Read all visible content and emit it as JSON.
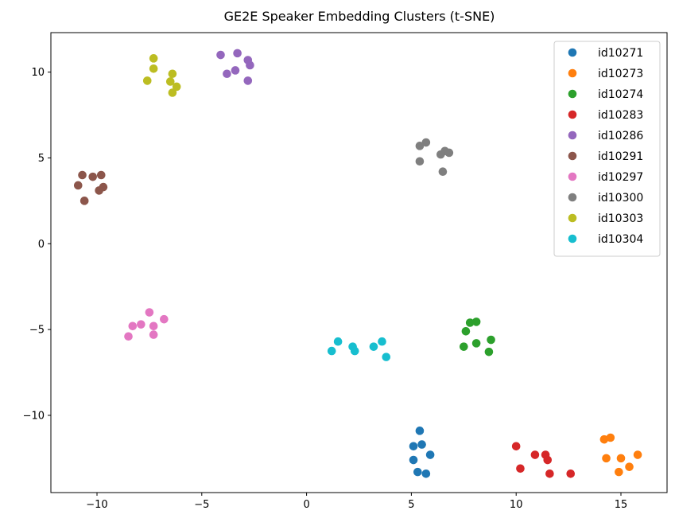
{
  "chart_data": {
    "type": "scatter",
    "title": "GE2E Speaker Embedding Clusters (t-SNE)",
    "xlabel": "",
    "ylabel": "",
    "xlim": [
      -12.2,
      17.2
    ],
    "ylim": [
      -14.5,
      12.3
    ],
    "x_ticks": [
      -10,
      -5,
      0,
      5,
      10,
      15
    ],
    "y_ticks": [
      -10,
      -5,
      0,
      5,
      10
    ],
    "grid": false,
    "legend_position": "top-right",
    "series": [
      {
        "name": "id10271",
        "color": "#1f77b4",
        "points": [
          [
            5.4,
            -10.9
          ],
          [
            5.1,
            -11.8
          ],
          [
            5.5,
            -11.7
          ],
          [
            5.9,
            -12.3
          ],
          [
            5.1,
            -12.6
          ],
          [
            5.3,
            -13.3
          ],
          [
            5.7,
            -13.4
          ]
        ]
      },
      {
        "name": "id10273",
        "color": "#ff7f0e",
        "points": [
          [
            14.2,
            -11.4
          ],
          [
            14.5,
            -11.3
          ],
          [
            14.3,
            -12.5
          ],
          [
            15.8,
            -12.3
          ],
          [
            15.0,
            -12.5
          ],
          [
            15.4,
            -13.0
          ],
          [
            14.9,
            -13.3
          ]
        ]
      },
      {
        "name": "id10274",
        "color": "#2ca02c",
        "points": [
          [
            7.8,
            -4.6
          ],
          [
            8.1,
            -4.55
          ],
          [
            7.6,
            -5.1
          ],
          [
            8.8,
            -5.6
          ],
          [
            8.1,
            -5.8
          ],
          [
            7.5,
            -6.0
          ],
          [
            8.7,
            -6.3
          ]
        ]
      },
      {
        "name": "id10283",
        "color": "#d62728",
        "points": [
          [
            10.0,
            -11.8
          ],
          [
            10.9,
            -12.3
          ],
          [
            11.4,
            -12.3
          ],
          [
            11.5,
            -12.6
          ],
          [
            10.2,
            -13.1
          ],
          [
            11.6,
            -13.4
          ],
          [
            12.6,
            -13.4
          ]
        ]
      },
      {
        "name": "id10286",
        "color": "#9467bd",
        "points": [
          [
            -4.1,
            11.0
          ],
          [
            -3.3,
            11.1
          ],
          [
            -2.8,
            10.7
          ],
          [
            -2.7,
            10.4
          ],
          [
            -3.4,
            10.1
          ],
          [
            -3.8,
            9.9
          ],
          [
            -2.8,
            9.5
          ]
        ]
      },
      {
        "name": "id10291",
        "color": "#8c564b",
        "points": [
          [
            -10.7,
            4.0
          ],
          [
            -10.2,
            3.9
          ],
          [
            -9.8,
            4.0
          ],
          [
            -10.9,
            3.4
          ],
          [
            -9.7,
            3.3
          ],
          [
            -9.9,
            3.1
          ],
          [
            -10.6,
            2.5
          ]
        ]
      },
      {
        "name": "id10297",
        "color": "#e377c2",
        "points": [
          [
            -7.5,
            -4.0
          ],
          [
            -6.8,
            -4.4
          ],
          [
            -7.9,
            -4.7
          ],
          [
            -8.3,
            -4.8
          ],
          [
            -7.3,
            -4.8
          ],
          [
            -7.3,
            -5.3
          ],
          [
            -8.5,
            -5.4
          ]
        ]
      },
      {
        "name": "id10300",
        "color": "#7f7f7f",
        "points": [
          [
            5.7,
            5.9
          ],
          [
            5.4,
            5.7
          ],
          [
            6.6,
            5.4
          ],
          [
            6.8,
            5.3
          ],
          [
            6.4,
            5.2
          ],
          [
            5.4,
            4.8
          ],
          [
            6.5,
            4.2
          ]
        ]
      },
      {
        "name": "id10303",
        "color": "#bcbd22",
        "points": [
          [
            -7.3,
            10.8
          ],
          [
            -7.3,
            10.2
          ],
          [
            -6.4,
            9.9
          ],
          [
            -7.6,
            9.5
          ],
          [
            -6.5,
            9.45
          ],
          [
            -6.2,
            9.15
          ],
          [
            -6.4,
            8.8
          ]
        ]
      },
      {
        "name": "id10304",
        "color": "#17becf",
        "points": [
          [
            1.5,
            -5.7
          ],
          [
            3.6,
            -5.7
          ],
          [
            2.2,
            -6.0
          ],
          [
            3.2,
            -6.0
          ],
          [
            1.2,
            -6.25
          ],
          [
            2.3,
            -6.25
          ],
          [
            3.8,
            -6.6
          ]
        ]
      }
    ]
  }
}
